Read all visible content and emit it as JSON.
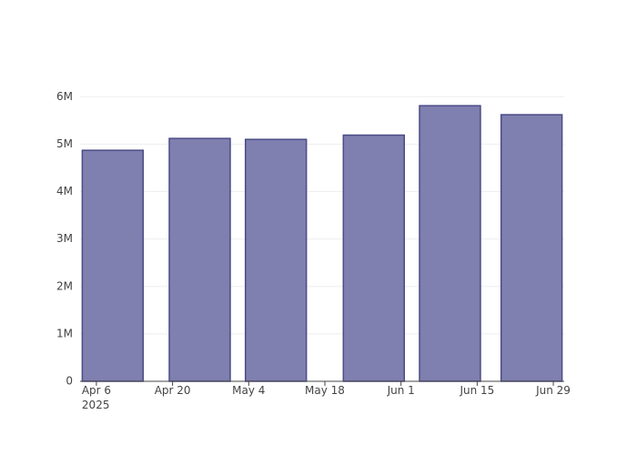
{
  "chart_data": {
    "type": "bar",
    "x": [
      "2025-04-09",
      "2025-04-25",
      "2025-05-09",
      "2025-05-27",
      "2025-06-10",
      "2025-06-25"
    ],
    "values": [
      4870000,
      5120000,
      5100000,
      5190000,
      5810000,
      5620000
    ],
    "color": "#7f7fb0",
    "edge_color": "#4b4b86",
    "xlim": [
      "2025-04-03",
      "2025-07-01"
    ],
    "xticks": [
      {
        "value": "2025-04-06",
        "label": "Apr 6\n2025"
      },
      {
        "value": "2025-04-20",
        "label": "Apr 20"
      },
      {
        "value": "2025-05-04",
        "label": "May 4"
      },
      {
        "value": "2025-05-18",
        "label": "May 18"
      },
      {
        "value": "2025-06-01",
        "label": "Jun 1"
      },
      {
        "value": "2025-06-15",
        "label": "Jun 15"
      },
      {
        "value": "2025-06-29",
        "label": "Jun 29"
      }
    ],
    "ylim": [
      0,
      6120000
    ],
    "yticks": [
      0,
      {
        "value": 1000000,
        "label": "1M"
      },
      {
        "value": 2000000,
        "label": "2M"
      },
      {
        "value": 3000000,
        "label": "3M"
      },
      {
        "value": 4000000,
        "label": "4M"
      },
      {
        "value": 5000000,
        "label": "5M"
      },
      {
        "value": 6000000,
        "label": "6M"
      }
    ],
    "grid": true
  }
}
